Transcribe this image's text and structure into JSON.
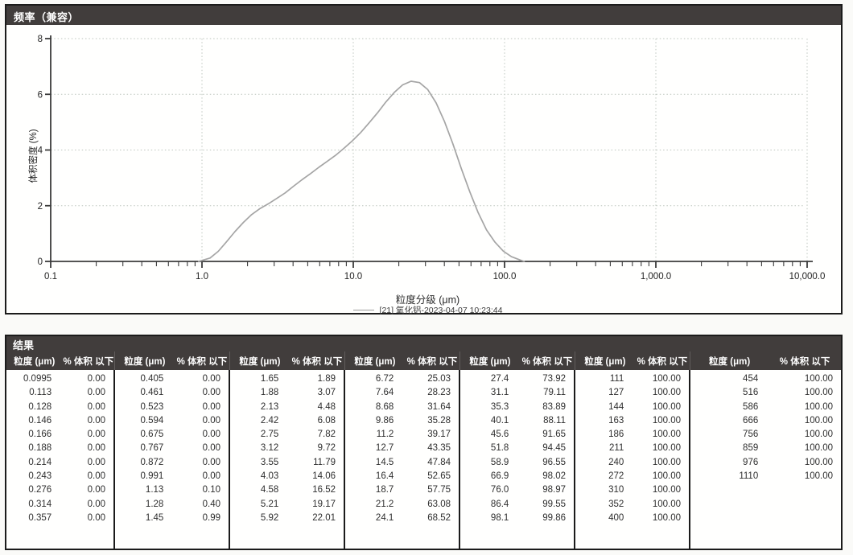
{
  "frequency_panel": {
    "title": "频率（兼容）"
  },
  "chart_data": {
    "type": "line",
    "title": "频率（兼容）",
    "xlabel": "粒度分级 (μm)",
    "ylabel": "体积密度 (%)",
    "x_scale": "log",
    "xlim": [
      0.1,
      10000
    ],
    "ylim": [
      0,
      8
    ],
    "x_ticks": [
      0.1,
      1,
      10,
      100,
      1000,
      10000
    ],
    "x_tick_labels": [
      "0.1",
      "1.0",
      "10.0",
      "100.0",
      "1,000.0",
      "10,000.0"
    ],
    "y_ticks": [
      0,
      2,
      4,
      6,
      8
    ],
    "x_gridlines": [
      1,
      10,
      100,
      1000,
      10000
    ],
    "y_gridlines": [
      2,
      4,
      6,
      8
    ],
    "grid": true,
    "legend_position": "bottom",
    "line_color": "#a5a5a5",
    "series": [
      {
        "name": "[21] 氧化铝-2023-04-07 10:23:44",
        "x": [
          0.95,
          1.13,
          1.28,
          1.45,
          1.65,
          1.88,
          2.13,
          2.42,
          2.75,
          3.12,
          3.55,
          4.03,
          4.58,
          5.21,
          5.92,
          6.72,
          7.64,
          8.68,
          9.86,
          11.2,
          12.7,
          14.5,
          16.4,
          18.7,
          21.2,
          24.1,
          27.4,
          31.1,
          35.3,
          40.1,
          45.6,
          51.8,
          58.9,
          66.9,
          76.0,
          86.4,
          98.1,
          111,
          127,
          135
        ],
        "y": [
          0.0,
          0.12,
          0.36,
          0.7,
          1.07,
          1.4,
          1.68,
          1.9,
          2.07,
          2.26,
          2.46,
          2.7,
          2.93,
          3.15,
          3.38,
          3.59,
          3.81,
          4.06,
          4.33,
          4.63,
          4.97,
          5.34,
          5.72,
          6.07,
          6.34,
          6.47,
          6.42,
          6.17,
          5.69,
          5.02,
          4.21,
          3.33,
          2.5,
          1.75,
          1.13,
          0.69,
          0.37,
          0.17,
          0.05,
          0.0
        ]
      }
    ]
  },
  "results_table": {
    "title": "结果",
    "col_headers": {
      "size": "粒度 (μm)",
      "pct": "% 体积 以下"
    },
    "groups": [
      {
        "rows": [
          [
            "0.0995",
            "0.00"
          ],
          [
            "0.113",
            "0.00"
          ],
          [
            "0.128",
            "0.00"
          ],
          [
            "0.146",
            "0.00"
          ],
          [
            "0.166",
            "0.00"
          ],
          [
            "0.188",
            "0.00"
          ],
          [
            "0.214",
            "0.00"
          ],
          [
            "0.243",
            "0.00"
          ],
          [
            "0.276",
            "0.00"
          ],
          [
            "0.314",
            "0.00"
          ],
          [
            "0.357",
            "0.00"
          ]
        ]
      },
      {
        "rows": [
          [
            "0.405",
            "0.00"
          ],
          [
            "0.461",
            "0.00"
          ],
          [
            "0.523",
            "0.00"
          ],
          [
            "0.594",
            "0.00"
          ],
          [
            "0.675",
            "0.00"
          ],
          [
            "0.767",
            "0.00"
          ],
          [
            "0.872",
            "0.00"
          ],
          [
            "0.991",
            "0.00"
          ],
          [
            "1.13",
            "0.10"
          ],
          [
            "1.28",
            "0.40"
          ],
          [
            "1.45",
            "0.99"
          ]
        ]
      },
      {
        "rows": [
          [
            "1.65",
            "1.89"
          ],
          [
            "1.88",
            "3.07"
          ],
          [
            "2.13",
            "4.48"
          ],
          [
            "2.42",
            "6.08"
          ],
          [
            "2.75",
            "7.82"
          ],
          [
            "3.12",
            "9.72"
          ],
          [
            "3.55",
            "11.79"
          ],
          [
            "4.03",
            "14.06"
          ],
          [
            "4.58",
            "16.52"
          ],
          [
            "5.21",
            "19.17"
          ],
          [
            "5.92",
            "22.01"
          ]
        ]
      },
      {
        "rows": [
          [
            "6.72",
            "25.03"
          ],
          [
            "7.64",
            "28.23"
          ],
          [
            "8.68",
            "31.64"
          ],
          [
            "9.86",
            "35.28"
          ],
          [
            "11.2",
            "39.17"
          ],
          [
            "12.7",
            "43.35"
          ],
          [
            "14.5",
            "47.84"
          ],
          [
            "16.4",
            "52.65"
          ],
          [
            "18.7",
            "57.75"
          ],
          [
            "21.2",
            "63.08"
          ],
          [
            "24.1",
            "68.52"
          ]
        ]
      },
      {
        "rows": [
          [
            "27.4",
            "73.92"
          ],
          [
            "31.1",
            "79.11"
          ],
          [
            "35.3",
            "83.89"
          ],
          [
            "40.1",
            "88.11"
          ],
          [
            "45.6",
            "91.65"
          ],
          [
            "51.8",
            "94.45"
          ],
          [
            "58.9",
            "96.55"
          ],
          [
            "66.9",
            "98.02"
          ],
          [
            "76.0",
            "98.97"
          ],
          [
            "86.4",
            "99.55"
          ],
          [
            "98.1",
            "99.86"
          ]
        ]
      },
      {
        "rows": [
          [
            "111",
            "100.00"
          ],
          [
            "127",
            "100.00"
          ],
          [
            "144",
            "100.00"
          ],
          [
            "163",
            "100.00"
          ],
          [
            "186",
            "100.00"
          ],
          [
            "211",
            "100.00"
          ],
          [
            "240",
            "100.00"
          ],
          [
            "272",
            "100.00"
          ],
          [
            "310",
            "100.00"
          ],
          [
            "352",
            "100.00"
          ],
          [
            "400",
            "100.00"
          ]
        ]
      },
      {
        "rows": [
          [
            "454",
            "100.00"
          ],
          [
            "516",
            "100.00"
          ],
          [
            "586",
            "100.00"
          ],
          [
            "666",
            "100.00"
          ],
          [
            "756",
            "100.00"
          ],
          [
            "859",
            "100.00"
          ],
          [
            "976",
            "100.00"
          ],
          [
            "1110",
            "100.00"
          ]
        ]
      }
    ]
  }
}
